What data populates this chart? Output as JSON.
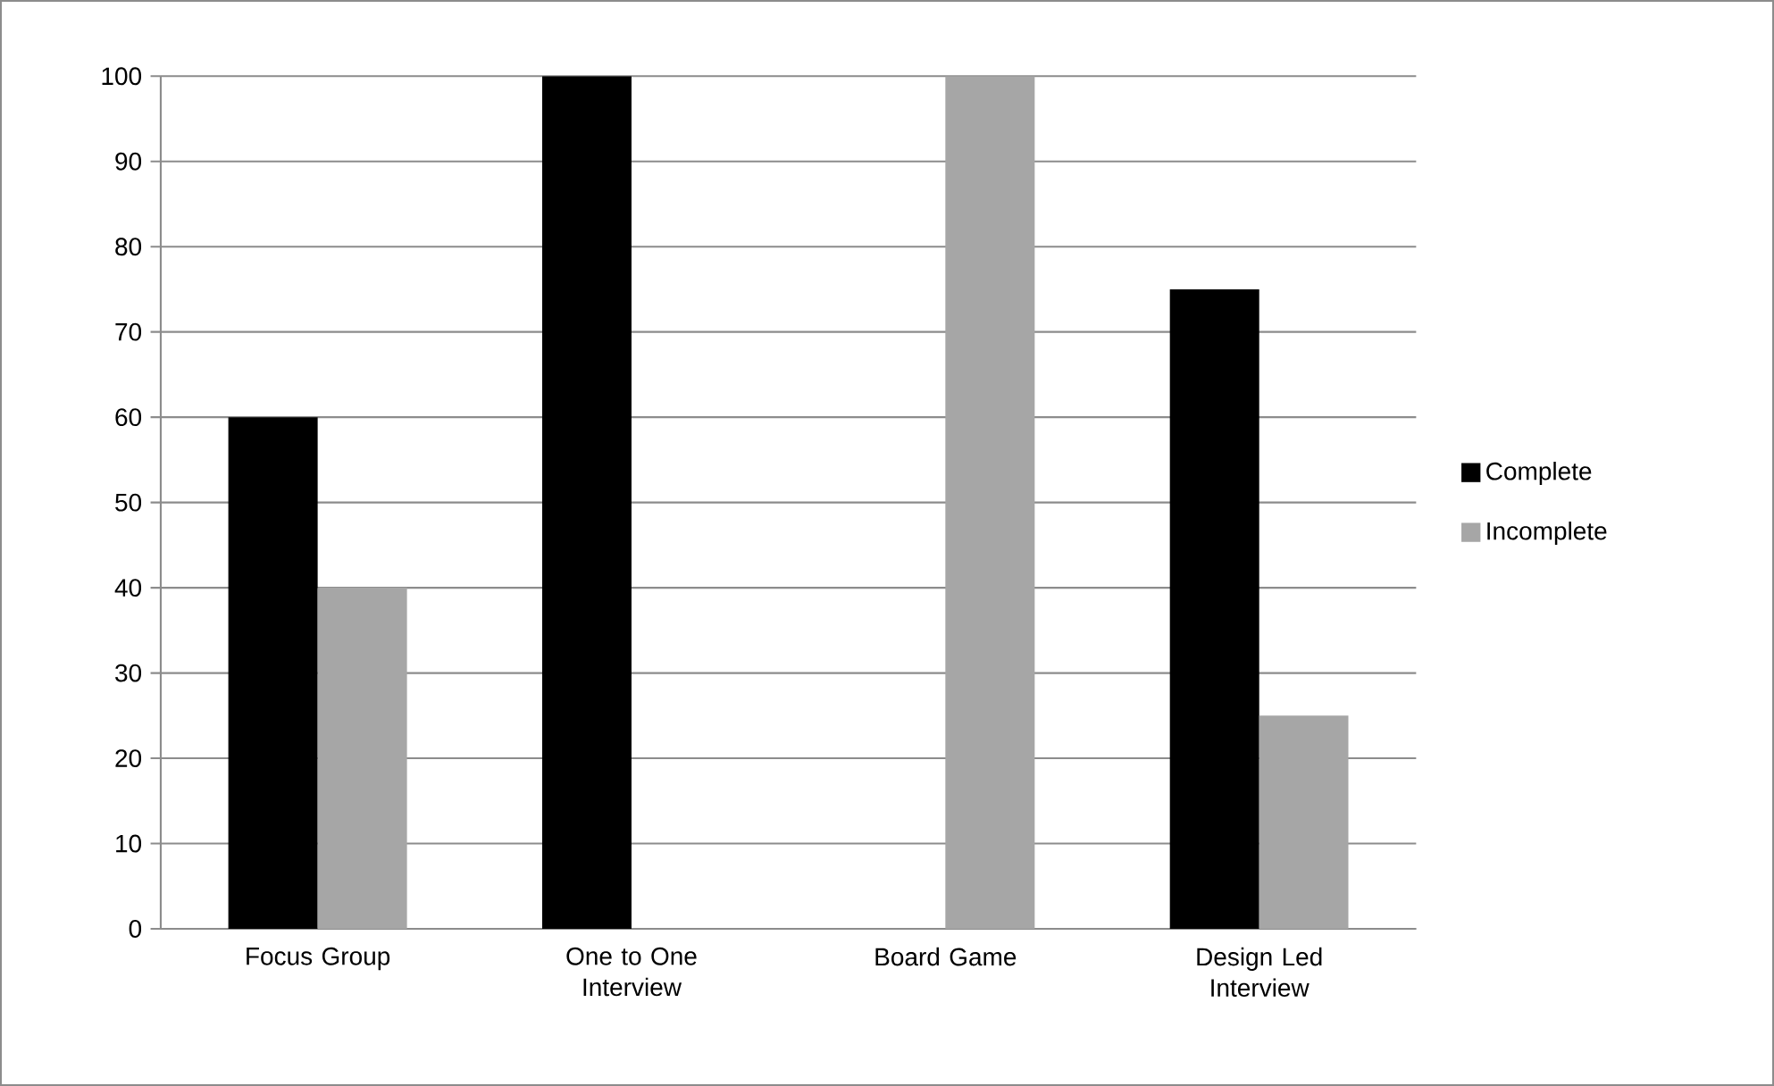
{
  "chart_data": {
    "type": "bar",
    "categories": [
      "Focus Group",
      "One to One Interview",
      "Board Game",
      "Design Led Interview"
    ],
    "series": [
      {
        "name": "Complete",
        "color": "#000000",
        "values": [
          60,
          100,
          0,
          75
        ]
      },
      {
        "name": "Incomplete",
        "color": "#a6a6a6",
        "values": [
          40,
          0,
          100,
          25
        ]
      }
    ],
    "ylim": [
      0,
      100
    ],
    "yticks": [
      0,
      10,
      20,
      30,
      40,
      50,
      60,
      70,
      80,
      90,
      100
    ],
    "grid": "y",
    "legend": "right"
  }
}
